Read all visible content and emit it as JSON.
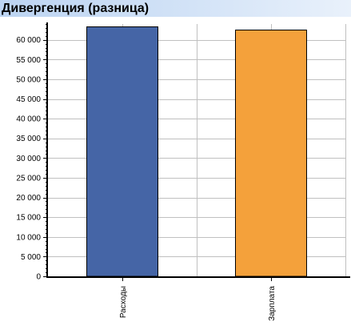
{
  "header": {
    "title": "Дивергенция (разница)"
  },
  "colors": {
    "title_bar": "#c8dcf4",
    "grid": "#c0c0c0",
    "axis": "#000000"
  },
  "chart_data": {
    "type": "bar",
    "title": "Дивергенция (разница)",
    "xlabel": "",
    "ylabel": "",
    "categories": [
      "Расходы",
      "Зарплата"
    ],
    "values": [
      63300,
      62500
    ],
    "colors": [
      "#4565a6",
      "#f4a13b"
    ],
    "ylim": [
      0,
      64000
    ],
    "y_ticks": [
      0,
      5000,
      10000,
      15000,
      20000,
      25000,
      30000,
      35000,
      40000,
      45000,
      50000,
      55000,
      60000
    ],
    "y_tick_labels": [
      "0",
      "5 000",
      "10 000",
      "15 000",
      "20 000",
      "25 000",
      "30 000",
      "35 000",
      "40 000",
      "45 000",
      "50 000",
      "55 000",
      "60 000"
    ],
    "grid": true,
    "legend": "none"
  }
}
